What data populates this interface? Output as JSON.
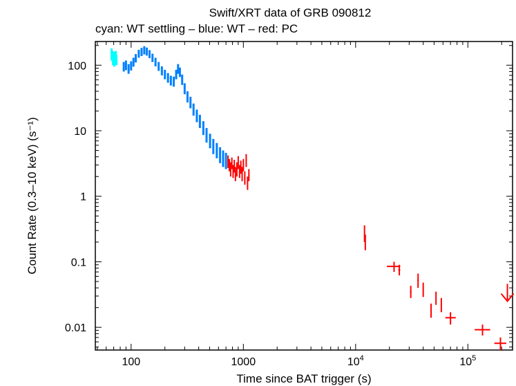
{
  "chart_data": {
    "type": "scatter",
    "title": "Swift/XRT data of GRB 090812",
    "subtitle": "cyan: WT settling – blue: WT – red: PC",
    "xlabel": "Time since BAT trigger (s)",
    "ylabel": "Count Rate (0.3–10 keV) (s⁻¹)",
    "xscale": "log",
    "yscale": "log",
    "xlim": [
      48,
      250000
    ],
    "ylim": [
      0.0045,
      230
    ],
    "x_ticks": [
      {
        "value": 100,
        "label": "100",
        "sup": ""
      },
      {
        "value": 1000,
        "label": "1000",
        "sup": ""
      },
      {
        "value": 10000,
        "label": "10",
        "sup": "4"
      },
      {
        "value": 100000,
        "label": "10",
        "sup": "5"
      }
    ],
    "y_ticks": [
      {
        "value": 100,
        "label": "100"
      },
      {
        "value": 10,
        "label": "10"
      },
      {
        "value": 1,
        "label": "1"
      },
      {
        "value": 0.1,
        "label": "0.1"
      },
      {
        "value": 0.01,
        "label": "0.01"
      }
    ],
    "series": [
      {
        "name": "WT settling",
        "color": "#00ffff",
        "points": [
          {
            "x": 67,
            "y": 150,
            "ylo": 120,
            "yhi": 180
          },
          {
            "x": 68,
            "y": 140,
            "ylo": 115,
            "yhi": 165
          },
          {
            "x": 69,
            "y": 125,
            "ylo": 100,
            "yhi": 150
          },
          {
            "x": 70,
            "y": 135,
            "ylo": 110,
            "yhi": 160
          },
          {
            "x": 71,
            "y": 115,
            "ylo": 95,
            "yhi": 140
          },
          {
            "x": 72,
            "y": 128,
            "ylo": 105,
            "yhi": 155
          },
          {
            "x": 73,
            "y": 140,
            "ylo": 115,
            "yhi": 165
          },
          {
            "x": 74,
            "y": 122,
            "ylo": 100,
            "yhi": 145
          }
        ]
      },
      {
        "name": "WT",
        "color": "#0080ff",
        "points": [
          {
            "x": 86,
            "y": 95,
            "ylo": 80,
            "yhi": 112
          },
          {
            "x": 90,
            "y": 100,
            "ylo": 84,
            "yhi": 118
          },
          {
            "x": 95,
            "y": 88,
            "ylo": 74,
            "yhi": 104
          },
          {
            "x": 100,
            "y": 98,
            "ylo": 83,
            "yhi": 115
          },
          {
            "x": 105,
            "y": 112,
            "ylo": 95,
            "yhi": 130
          },
          {
            "x": 110,
            "y": 128,
            "ylo": 110,
            "yhi": 148
          },
          {
            "x": 117,
            "y": 150,
            "ylo": 130,
            "yhi": 172
          },
          {
            "x": 124,
            "y": 160,
            "ylo": 138,
            "yhi": 184
          },
          {
            "x": 131,
            "y": 170,
            "ylo": 146,
            "yhi": 195
          },
          {
            "x": 138,
            "y": 162,
            "ylo": 140,
            "yhi": 186
          },
          {
            "x": 146,
            "y": 148,
            "ylo": 128,
            "yhi": 170
          },
          {
            "x": 155,
            "y": 130,
            "ylo": 112,
            "yhi": 150
          },
          {
            "x": 165,
            "y": 112,
            "ylo": 96,
            "yhi": 130
          },
          {
            "x": 176,
            "y": 96,
            "ylo": 82,
            "yhi": 112
          },
          {
            "x": 188,
            "y": 82,
            "ylo": 70,
            "yhi": 96
          },
          {
            "x": 200,
            "y": 72,
            "ylo": 61,
            "yhi": 85
          },
          {
            "x": 213,
            "y": 64,
            "ylo": 54,
            "yhi": 76
          },
          {
            "x": 226,
            "y": 58,
            "ylo": 49,
            "yhi": 69
          },
          {
            "x": 240,
            "y": 56,
            "ylo": 47,
            "yhi": 67
          },
          {
            "x": 252,
            "y": 72,
            "ylo": 61,
            "yhi": 85
          },
          {
            "x": 262,
            "y": 88,
            "ylo": 74,
            "yhi": 104
          },
          {
            "x": 272,
            "y": 78,
            "ylo": 66,
            "yhi": 92
          },
          {
            "x": 285,
            "y": 60,
            "ylo": 50,
            "yhi": 72
          },
          {
            "x": 300,
            "y": 44,
            "ylo": 36,
            "yhi": 53
          },
          {
            "x": 318,
            "y": 33,
            "ylo": 27,
            "yhi": 40
          },
          {
            "x": 338,
            "y": 27,
            "ylo": 22,
            "yhi": 33
          },
          {
            "x": 360,
            "y": 21,
            "ylo": 17,
            "yhi": 26
          },
          {
            "x": 385,
            "y": 17,
            "ylo": 13.5,
            "yhi": 21
          },
          {
            "x": 410,
            "y": 14,
            "ylo": 11,
            "yhi": 17.5
          },
          {
            "x": 440,
            "y": 11,
            "ylo": 8.6,
            "yhi": 14
          },
          {
            "x": 470,
            "y": 8.5,
            "ylo": 6.6,
            "yhi": 11
          },
          {
            "x": 505,
            "y": 7,
            "ylo": 5.4,
            "yhi": 9
          },
          {
            "x": 540,
            "y": 5.8,
            "ylo": 4.4,
            "yhi": 7.5
          },
          {
            "x": 580,
            "y": 5.0,
            "ylo": 3.8,
            "yhi": 6.5
          },
          {
            "x": 620,
            "y": 4.3,
            "ylo": 3.2,
            "yhi": 5.6
          },
          {
            "x": 660,
            "y": 3.8,
            "ylo": 2.8,
            "yhi": 5.0
          },
          {
            "x": 700,
            "y": 3.5,
            "ylo": 2.6,
            "yhi": 4.6
          }
        ]
      },
      {
        "name": "PC",
        "color": "#ff0000",
        "points": [
          {
            "x": 730,
            "y": 3.4,
            "ylo": 2.7,
            "yhi": 4.2,
            "xlo": 720,
            "xhi": 740
          },
          {
            "x": 750,
            "y": 3.0,
            "ylo": 2.4,
            "yhi": 3.7,
            "xlo": 741,
            "xhi": 760
          },
          {
            "x": 770,
            "y": 2.6,
            "ylo": 2.0,
            "yhi": 3.3,
            "xlo": 761,
            "xhi": 780
          },
          {
            "x": 790,
            "y": 3.2,
            "ylo": 2.6,
            "yhi": 3.9,
            "xlo": 781,
            "xhi": 800
          },
          {
            "x": 810,
            "y": 2.4,
            "ylo": 1.9,
            "yhi": 3.0,
            "xlo": 801,
            "xhi": 820
          },
          {
            "x": 830,
            "y": 2.9,
            "ylo": 2.3,
            "yhi": 3.6,
            "xlo": 821,
            "xhi": 840
          },
          {
            "x": 850,
            "y": 2.2,
            "ylo": 1.7,
            "yhi": 2.8,
            "xlo": 841,
            "xhi": 860
          },
          {
            "x": 875,
            "y": 2.6,
            "ylo": 2.0,
            "yhi": 3.3,
            "xlo": 862,
            "xhi": 888
          },
          {
            "x": 900,
            "y": 3.3,
            "ylo": 2.6,
            "yhi": 4.1,
            "xlo": 889,
            "xhi": 912
          },
          {
            "x": 925,
            "y": 2.4,
            "ylo": 1.9,
            "yhi": 3.0,
            "xlo": 913,
            "xhi": 937
          },
          {
            "x": 950,
            "y": 2.8,
            "ylo": 2.2,
            "yhi": 3.5,
            "xlo": 938,
            "xhi": 962
          },
          {
            "x": 975,
            "y": 2.2,
            "ylo": 1.7,
            "yhi": 2.8,
            "xlo": 963,
            "xhi": 987
          },
          {
            "x": 1000,
            "y": 3.0,
            "ylo": 2.4,
            "yhi": 3.7,
            "xlo": 988,
            "xhi": 1012
          },
          {
            "x": 1030,
            "y": 1.9,
            "ylo": 1.5,
            "yhi": 2.4,
            "xlo": 1015,
            "xhi": 1045
          },
          {
            "x": 1060,
            "y": 3.6,
            "ylo": 2.8,
            "yhi": 4.4,
            "xlo": 1046,
            "xhi": 1074
          },
          {
            "x": 1090,
            "y": 1.6,
            "ylo": 1.25,
            "yhi": 2.0,
            "xlo": 1076,
            "xhi": 1104
          },
          {
            "x": 1120,
            "y": 2.1,
            "ylo": 1.7,
            "yhi": 2.6,
            "xlo": 1106,
            "xhi": 1134
          },
          {
            "x": 12000,
            "y": 0.28,
            "ylo": 0.2,
            "yhi": 0.36,
            "xlo": 11900,
            "xhi": 12100
          },
          {
            "x": 12200,
            "y": 0.2,
            "ylo": 0.15,
            "yhi": 0.26,
            "xlo": 12100,
            "xhi": 12300
          },
          {
            "x": 22000,
            "y": 0.085,
            "ylo": 0.07,
            "yhi": 0.1,
            "xlo": 19000,
            "xhi": 25000
          },
          {
            "x": 24500,
            "y": 0.075,
            "ylo": 0.062,
            "yhi": 0.09,
            "xlo": 24000,
            "xhi": 25000
          },
          {
            "x": 31000,
            "y": 0.035,
            "ylo": 0.028,
            "yhi": 0.043,
            "xlo": 30500,
            "xhi": 31500
          },
          {
            "x": 36000,
            "y": 0.052,
            "ylo": 0.04,
            "yhi": 0.066,
            "xlo": 35500,
            "xhi": 36500
          },
          {
            "x": 40000,
            "y": 0.038,
            "ylo": 0.029,
            "yhi": 0.048,
            "xlo": 39500,
            "xhi": 40500
          },
          {
            "x": 47000,
            "y": 0.018,
            "ylo": 0.014,
            "yhi": 0.023,
            "xlo": 46500,
            "xhi": 47500
          },
          {
            "x": 52000,
            "y": 0.028,
            "ylo": 0.022,
            "yhi": 0.035,
            "xlo": 51500,
            "xhi": 52500
          },
          {
            "x": 58000,
            "y": 0.022,
            "ylo": 0.017,
            "yhi": 0.028,
            "xlo": 57500,
            "xhi": 58500
          },
          {
            "x": 70000,
            "y": 0.014,
            "ylo": 0.011,
            "yhi": 0.017,
            "xlo": 63000,
            "xhi": 78000
          },
          {
            "x": 135000,
            "y": 0.0092,
            "ylo": 0.0075,
            "yhi": 0.011,
            "xlo": 115000,
            "xhi": 158000
          },
          {
            "x": 195000,
            "y": 0.0057,
            "ylo": 0.0045,
            "yhi": 0.007,
            "xlo": 172000,
            "xhi": 220000
          }
        ],
        "upper_limits": [
          {
            "x": 225000,
            "y": 0.045,
            "y_arrow_end": 0.025,
            "xlo": 222000,
            "xhi": 228000
          }
        ]
      }
    ]
  }
}
